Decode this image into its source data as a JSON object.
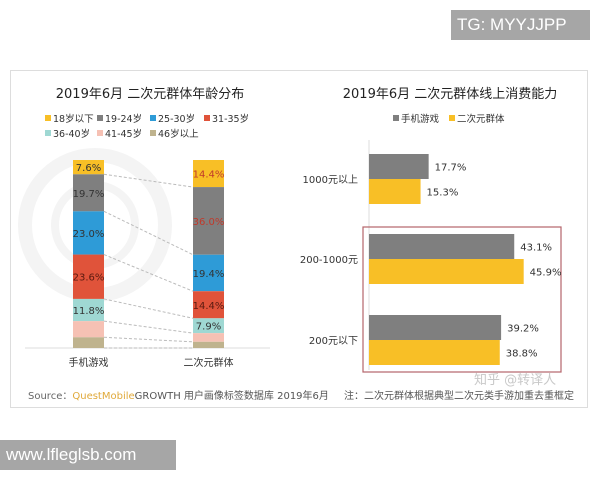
{
  "badges": {
    "top_right": "TG: MYYJJPP",
    "bottom_left": "www.lfleglsb.com"
  },
  "watermarks": {
    "brand": "QUESTMOBILE",
    "zhihu": "知乎 @转译人"
  },
  "source": {
    "prefix": "Source：",
    "brand": "QuestMobile",
    "rest": "GROWTH 用户画像标签数据库 2019年6月",
    "note": "注：二次元群体根据典型二次元类手游加重去重框定"
  },
  "colors": {
    "yellow": "#f8bf26",
    "gray": "#7f7f7f",
    "blue": "#2e9bd7",
    "red": "#e0533a",
    "teal": "#9fd8d3",
    "pink": "#f6c1b4",
    "olive": "#bfb38e",
    "highlight_box": "#b5646a",
    "brand": "#e0a93a"
  },
  "chart_data": [
    {
      "type": "bar",
      "stacked": true,
      "title": "2019年6月 二次元群体年龄分布",
      "categories": [
        "手机游戏",
        "二次元群体"
      ],
      "legend_placement": "top",
      "series": [
        {
          "name": "18岁以下",
          "color": "#f8bf26",
          "values": [
            7.6,
            14.4
          ],
          "labels": [
            "7.6%",
            "14.4%"
          ]
        },
        {
          "name": "19-24岁",
          "color": "#7f7f7f",
          "values": [
            19.7,
            36.0
          ],
          "labels": [
            "19.7%",
            "36.0%"
          ]
        },
        {
          "name": "25-30岁",
          "color": "#2e9bd7",
          "values": [
            23.0,
            19.4
          ],
          "labels": [
            "23.0%",
            "19.4%"
          ]
        },
        {
          "name": "31-35岁",
          "color": "#e0533a",
          "values": [
            23.6,
            14.4
          ],
          "labels": [
            "23.6%",
            "14.4%"
          ]
        },
        {
          "name": "36-40岁",
          "color": "#9fd8d3",
          "values": [
            11.8,
            7.9
          ],
          "labels": [
            "11.8%",
            "7.9%"
          ]
        },
        {
          "name": "41-45岁",
          "color": "#f6c1b4",
          "values": [
            8.6,
            4.6
          ],
          "labels": [
            "",
            ""
          ]
        },
        {
          "name": "46岁以上",
          "color": "#bfb38e",
          "values": [
            5.7,
            3.3
          ],
          "labels": [
            "",
            ""
          ]
        }
      ],
      "ylim": [
        0,
        100
      ],
      "grid": false
    },
    {
      "type": "bar",
      "orientation": "horizontal",
      "title": "2019年6月 二次元群体线上消费能力",
      "categories": [
        "1000元以上",
        "200-1000元",
        "200元以下"
      ],
      "legend_placement": "top",
      "series": [
        {
          "name": "手机游戏",
          "color": "#7f7f7f",
          "values": [
            17.7,
            43.1,
            39.2
          ],
          "labels": [
            "17.7%",
            "43.1%",
            "39.2%"
          ]
        },
        {
          "name": "二次元群体",
          "color": "#f8bf26",
          "values": [
            15.3,
            45.9,
            38.8
          ],
          "labels": [
            "15.3%",
            "45.9%",
            "38.8%"
          ]
        }
      ],
      "highlighted_categories": [
        "200-1000元",
        "200元以下"
      ],
      "grid": false
    }
  ]
}
